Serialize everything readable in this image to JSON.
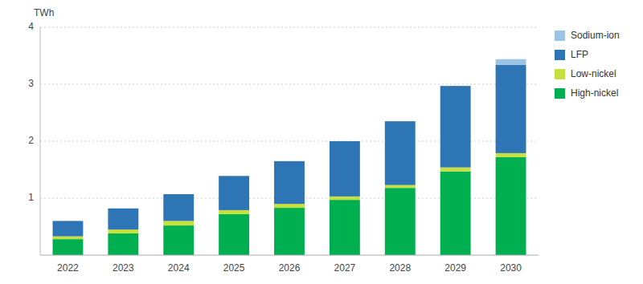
{
  "chart_data": {
    "type": "bar",
    "stacked": true,
    "categories": [
      "2022",
      "2023",
      "2024",
      "2025",
      "2026",
      "2027",
      "2028",
      "2029",
      "2030"
    ],
    "series": [
      {
        "name": "High-nickel",
        "color": "#00b050",
        "values": [
          0.28,
          0.38,
          0.52,
          0.72,
          0.83,
          0.97,
          1.18,
          1.47,
          1.72
        ]
      },
      {
        "name": "Low-nickel",
        "color": "#c6e03e",
        "values": [
          0.05,
          0.07,
          0.08,
          0.07,
          0.07,
          0.06,
          0.05,
          0.07,
          0.07
        ]
      },
      {
        "name": "LFP",
        "color": "#2e75b6",
        "values": [
          0.27,
          0.37,
          0.47,
          0.6,
          0.75,
          0.97,
          1.12,
          1.43,
          1.55
        ]
      },
      {
        "name": "Sodium-ion",
        "color": "#9dc3e6",
        "values": [
          0.0,
          0.0,
          0.0,
          0.0,
          0.0,
          0.0,
          0.0,
          0.0,
          0.1
        ]
      }
    ],
    "y_label": "TWh",
    "ylim": [
      0,
      4
    ],
    "yticks": [
      1,
      2,
      3,
      4
    ],
    "grid": true,
    "legend": "right"
  }
}
